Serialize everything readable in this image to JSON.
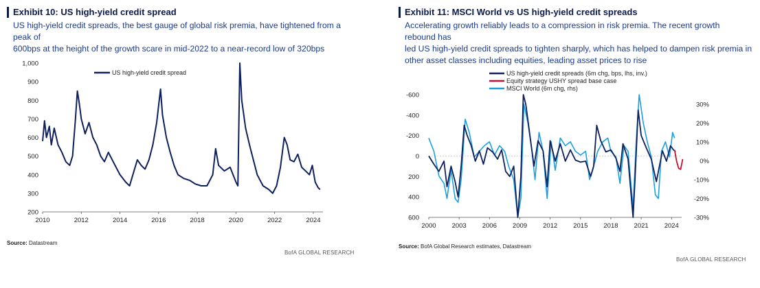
{
  "exhibit10": {
    "title": "Exhibit 10: US high-yield credit spread",
    "subtitle_lines": [
      "US high-yield credit spreads, the best gauge of global risk premia, have tightened from a peak of",
      "600bps at the height of the growth scare in mid-2022 to a near-record low of 320bps"
    ],
    "source_label": "Source:",
    "source_text": "Datastream",
    "brand": "BofA GLOBAL RESEARCH"
  },
  "exhibit11": {
    "title": "Exhibit 11: MSCI World vs US high-yield credit spreads",
    "subtitle_lines": [
      "Accelerating growth reliably leads to a compression in risk premia. The recent growth rebound has",
      "led US high-yield credit spreads to tighten sharply, which has helped to dampen risk premia in",
      "other asset classes including equities, leading asset prices to rise"
    ],
    "source_label": "Source:",
    "source_text": "BofA Global Research estimates, Datastream",
    "brand": "BofA GLOBAL RESEARCH"
  },
  "colors": {
    "navy": "#0d1f5c",
    "light_blue": "#1aa0e0",
    "red": "#c8102e",
    "grid": "#bfc7d6"
  },
  "chart_data": [
    {
      "type": "line",
      "title": "",
      "xlabel": "",
      "ylabel": "",
      "xlim": [
        2010,
        2024.5
      ],
      "ylim": [
        200,
        1000
      ],
      "yticks": [
        200,
        300,
        400,
        500,
        600,
        700,
        800,
        900,
        1000
      ],
      "ytick_labels": [
        "200",
        "300",
        "400",
        "500",
        "600",
        "700",
        "800",
        "900",
        "1,000"
      ],
      "xticks": [
        2010,
        2012,
        2014,
        2016,
        2018,
        2020,
        2022,
        2024
      ],
      "xtick_labels": [
        "2010",
        "2012",
        "2014",
        "2016",
        "2018",
        "2020",
        "2022",
        "2024"
      ],
      "legend": "top-left",
      "series": [
        {
          "name": "US high-yield credit spread",
          "color": "#0d1f5c",
          "points": [
            [
              2010.0,
              580
            ],
            [
              2010.1,
              690
            ],
            [
              2010.2,
              600
            ],
            [
              2010.35,
              660
            ],
            [
              2010.45,
              560
            ],
            [
              2010.6,
              650
            ],
            [
              2010.8,
              560
            ],
            [
              2011.0,
              520
            ],
            [
              2011.2,
              470
            ],
            [
              2011.4,
              450
            ],
            [
              2011.55,
              500
            ],
            [
              2011.7,
              700
            ],
            [
              2011.8,
              850
            ],
            [
              2011.9,
              780
            ],
            [
              2012.0,
              700
            ],
            [
              2012.2,
              620
            ],
            [
              2012.4,
              680
            ],
            [
              2012.6,
              600
            ],
            [
              2012.8,
              560
            ],
            [
              2013.0,
              500
            ],
            [
              2013.2,
              470
            ],
            [
              2013.4,
              520
            ],
            [
              2013.6,
              480
            ],
            [
              2013.8,
              440
            ],
            [
              2014.0,
              400
            ],
            [
              2014.3,
              360
            ],
            [
              2014.5,
              340
            ],
            [
              2014.7,
              410
            ],
            [
              2014.9,
              480
            ],
            [
              2015.1,
              450
            ],
            [
              2015.3,
              430
            ],
            [
              2015.5,
              480
            ],
            [
              2015.7,
              560
            ],
            [
              2015.9,
              680
            ],
            [
              2016.1,
              860
            ],
            [
              2016.2,
              720
            ],
            [
              2016.4,
              600
            ],
            [
              2016.6,
              520
            ],
            [
              2016.8,
              450
            ],
            [
              2017.0,
              400
            ],
            [
              2017.3,
              380
            ],
            [
              2017.6,
              370
            ],
            [
              2017.9,
              350
            ],
            [
              2018.2,
              340
            ],
            [
              2018.5,
              340
            ],
            [
              2018.8,
              400
            ],
            [
              2018.95,
              540
            ],
            [
              2019.1,
              450
            ],
            [
              2019.4,
              420
            ],
            [
              2019.7,
              440
            ],
            [
              2020.0,
              360
            ],
            [
              2020.1,
              340
            ],
            [
              2020.2,
              1000
            ],
            [
              2020.3,
              800
            ],
            [
              2020.5,
              650
            ],
            [
              2020.7,
              560
            ],
            [
              2020.9,
              480
            ],
            [
              2021.1,
              400
            ],
            [
              2021.4,
              340
            ],
            [
              2021.7,
              320
            ],
            [
              2021.9,
              300
            ],
            [
              2022.1,
              340
            ],
            [
              2022.3,
              440
            ],
            [
              2022.5,
              600
            ],
            [
              2022.65,
              560
            ],
            [
              2022.8,
              480
            ],
            [
              2023.0,
              470
            ],
            [
              2023.2,
              510
            ],
            [
              2023.4,
              440
            ],
            [
              2023.6,
              420
            ],
            [
              2023.8,
              400
            ],
            [
              2023.95,
              450
            ],
            [
              2024.1,
              360
            ],
            [
              2024.25,
              330
            ],
            [
              2024.35,
              320
            ]
          ]
        }
      ]
    },
    {
      "type": "line",
      "title": "",
      "xlabel": "",
      "ylabel": "",
      "xlim": [
        2000,
        2025
      ],
      "ylim_left": [
        600,
        -600
      ],
      "yticks_left": [
        -600,
        -400,
        -200,
        0,
        200,
        400,
        600
      ],
      "ylim_right": [
        -30,
        35
      ],
      "yticks_right": [
        -30,
        -20,
        -10,
        0,
        10,
        20,
        30
      ],
      "ytick_labels_right": [
        "-30%",
        "-20%",
        "-10%",
        "0%",
        "10%",
        "20%",
        "30%"
      ],
      "xticks": [
        2000,
        2003,
        2006,
        2009,
        2012,
        2015,
        2018,
        2021,
        2024
      ],
      "legend": "top-left",
      "series": [
        {
          "name": "US high-yield credit spreads (6m chg, bps, lhs, inv.)",
          "axis": "left",
          "color": "#0d1f5c",
          "points": [
            [
              2000.0,
              0
            ],
            [
              2000.5,
              80
            ],
            [
              2001.0,
              150
            ],
            [
              2001.5,
              50
            ],
            [
              2001.8,
              300
            ],
            [
              2002.2,
              100
            ],
            [
              2002.6,
              250
            ],
            [
              2002.9,
              400
            ],
            [
              2003.2,
              100
            ],
            [
              2003.5,
              -300
            ],
            [
              2003.8,
              -200
            ],
            [
              2004.2,
              -100
            ],
            [
              2004.6,
              50
            ],
            [
              2005.0,
              -50
            ],
            [
              2005.4,
              80
            ],
            [
              2005.8,
              -80
            ],
            [
              2006.3,
              -40
            ],
            [
              2006.8,
              30
            ],
            [
              2007.2,
              -60
            ],
            [
              2007.6,
              150
            ],
            [
              2008.0,
              200
            ],
            [
              2008.4,
              100
            ],
            [
              2008.8,
              600
            ],
            [
              2009.1,
              200
            ],
            [
              2009.35,
              -600
            ],
            [
              2009.6,
              -500
            ],
            [
              2010.0,
              -200
            ],
            [
              2010.4,
              100
            ],
            [
              2010.8,
              -150
            ],
            [
              2011.3,
              -50
            ],
            [
              2011.7,
              300
            ],
            [
              2012.0,
              -150
            ],
            [
              2012.5,
              50
            ],
            [
              2013.0,
              -120
            ],
            [
              2013.5,
              50
            ],
            [
              2014.0,
              -60
            ],
            [
              2014.5,
              40
            ],
            [
              2015.0,
              60
            ],
            [
              2015.5,
              50
            ],
            [
              2016.0,
              200
            ],
            [
              2016.3,
              100
            ],
            [
              2016.6,
              -300
            ],
            [
              2017.0,
              -150
            ],
            [
              2017.5,
              -40
            ],
            [
              2018.0,
              -60
            ],
            [
              2018.5,
              20
            ],
            [
              2018.9,
              150
            ],
            [
              2019.2,
              -120
            ],
            [
              2019.7,
              30
            ],
            [
              2020.2,
              600
            ],
            [
              2020.4,
              200
            ],
            [
              2020.7,
              -450
            ],
            [
              2021.0,
              -200
            ],
            [
              2021.5,
              -80
            ],
            [
              2022.0,
              30
            ],
            [
              2022.5,
              250
            ],
            [
              2022.8,
              100
            ],
            [
              2023.1,
              -50
            ],
            [
              2023.5,
              50
            ],
            [
              2023.9,
              -100
            ],
            [
              2024.2,
              -60
            ],
            [
              2024.4,
              -40
            ]
          ]
        },
        {
          "name": "Equity strategy USHY spread base case",
          "axis": "left",
          "color": "#c8102e",
          "points": [
            [
              2024.3,
              -60
            ],
            [
              2024.5,
              50
            ],
            [
              2024.7,
              120
            ],
            [
              2024.9,
              130
            ],
            [
              2025.0,
              80
            ],
            [
              2025.1,
              30
            ]
          ]
        },
        {
          "name": "MSCI World (6m chg, rhs)",
          "axis": "right",
          "color": "#1aa0e0",
          "points": [
            [
              2000.0,
              12
            ],
            [
              2000.5,
              5
            ],
            [
              2001.0,
              -8
            ],
            [
              2001.5,
              -12
            ],
            [
              2001.8,
              -20
            ],
            [
              2002.2,
              -5
            ],
            [
              2002.6,
              -20
            ],
            [
              2002.9,
              -22
            ],
            [
              2003.2,
              -10
            ],
            [
              2003.6,
              22
            ],
            [
              2004.0,
              15
            ],
            [
              2004.5,
              2
            ],
            [
              2005.0,
              5
            ],
            [
              2005.5,
              8
            ],
            [
              2006.0,
              10
            ],
            [
              2006.5,
              3
            ],
            [
              2007.0,
              8
            ],
            [
              2007.5,
              5
            ],
            [
              2007.9,
              -3
            ],
            [
              2008.4,
              -10
            ],
            [
              2008.8,
              -32
            ],
            [
              2009.1,
              -20
            ],
            [
              2009.4,
              30
            ],
            [
              2009.8,
              20
            ],
            [
              2010.2,
              5
            ],
            [
              2010.5,
              -10
            ],
            [
              2010.9,
              15
            ],
            [
              2011.3,
              5
            ],
            [
              2011.7,
              -20
            ],
            [
              2012.1,
              10
            ],
            [
              2012.5,
              -5
            ],
            [
              2013.0,
              12
            ],
            [
              2013.5,
              8
            ],
            [
              2014.0,
              10
            ],
            [
              2014.5,
              5
            ],
            [
              2015.0,
              3
            ],
            [
              2015.5,
              5
            ],
            [
              2015.9,
              -10
            ],
            [
              2016.2,
              -5
            ],
            [
              2016.7,
              5
            ],
            [
              2017.2,
              10
            ],
            [
              2017.7,
              12
            ],
            [
              2018.0,
              5
            ],
            [
              2018.5,
              2
            ],
            [
              2018.9,
              -12
            ],
            [
              2019.3,
              8
            ],
            [
              2019.7,
              5
            ],
            [
              2020.2,
              -25
            ],
            [
              2020.5,
              10
            ],
            [
              2020.8,
              35
            ],
            [
              2021.2,
              20
            ],
            [
              2021.6,
              10
            ],
            [
              2022.0,
              2
            ],
            [
              2022.4,
              -18
            ],
            [
              2022.7,
              -20
            ],
            [
              2023.0,
              5
            ],
            [
              2023.4,
              10
            ],
            [
              2023.8,
              2
            ],
            [
              2024.1,
              15
            ],
            [
              2024.3,
              12
            ]
          ]
        }
      ]
    }
  ]
}
